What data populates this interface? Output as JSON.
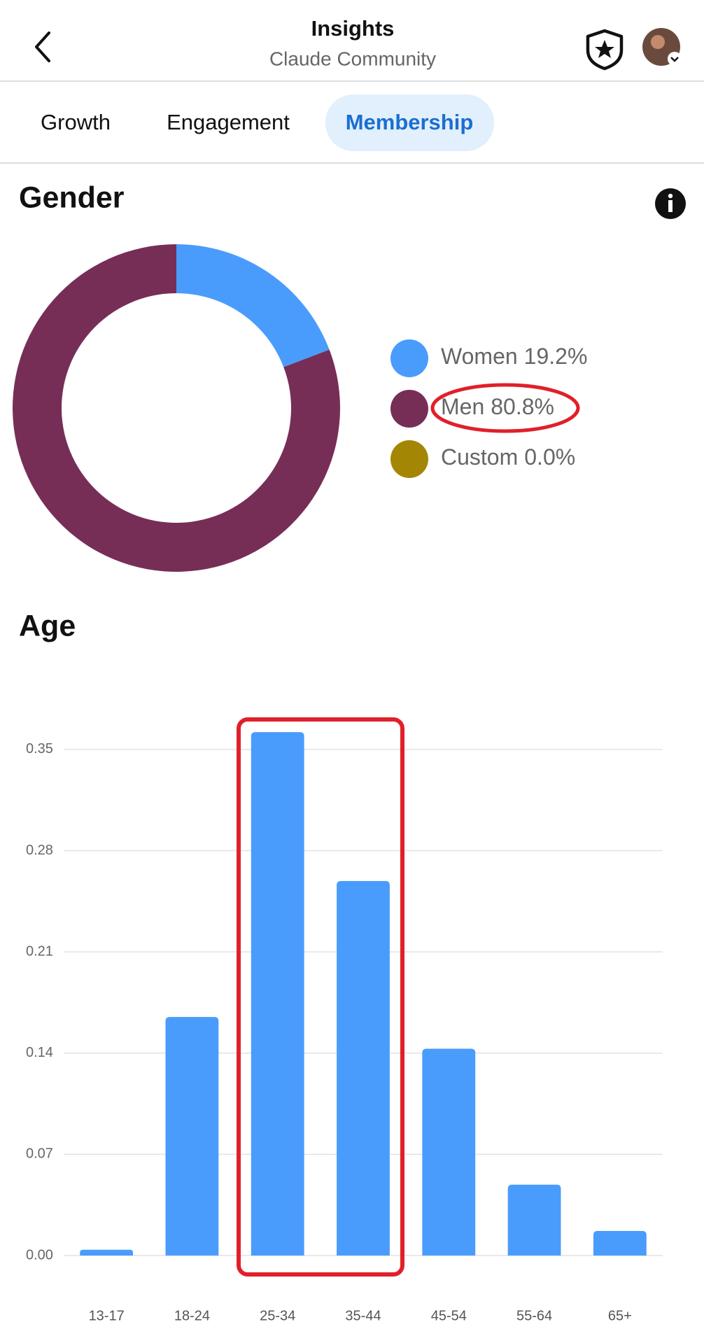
{
  "header": {
    "title": "Insights",
    "subtitle": "Claude Community"
  },
  "tabs": [
    "Growth",
    "Engagement",
    "Membership"
  ],
  "active_tab": 2,
  "chart_data": [
    {
      "type": "donut",
      "title": "Gender",
      "categories": [
        "Women",
        "Men",
        "Custom"
      ],
      "values": [
        19.2,
        80.8,
        0.0
      ],
      "value_labels": [
        "19.2%",
        "80.8%",
        "0.0%"
      ],
      "colors": [
        "#4a9cfc",
        "#772e56",
        "#a38704"
      ]
    },
    {
      "type": "bar",
      "title": "Age",
      "categories": [
        "13-17",
        "18-24",
        "25-34",
        "35-44",
        "45-54",
        "55-64",
        "65+"
      ],
      "values": [
        0.004,
        0.165,
        0.362,
        0.259,
        0.143,
        0.049,
        0.017
      ],
      "color": "#4a9cfc",
      "ylim": [
        0,
        0.385
      ],
      "yticks": [
        {
          "value": 0,
          "label": "0.00"
        },
        0.07,
        0.14,
        0.21,
        0.28,
        0.35
      ],
      "grid": true
    }
  ]
}
